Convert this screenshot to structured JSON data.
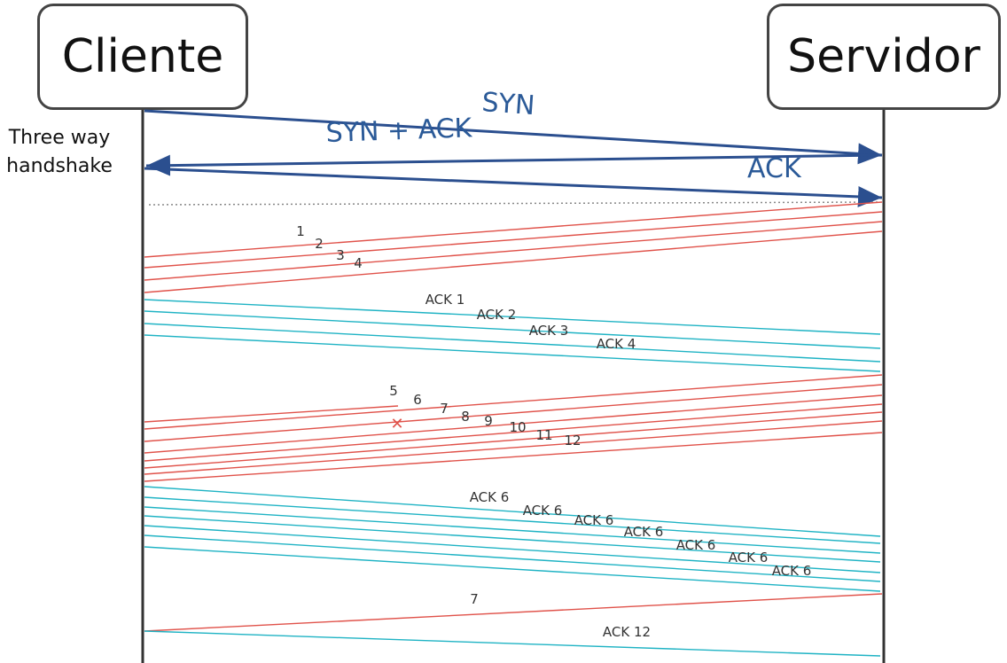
{
  "client_label": "Cliente",
  "server_label": "Servidor",
  "side_label": [
    "Three way",
    "handshake"
  ],
  "handshake": {
    "syn": "SYN",
    "syn_ack": "SYN + ACK",
    "ack": "ACK"
  },
  "colors": {
    "handshake": "#2b4f8f",
    "data": "#e0524a",
    "ack": "#1fb3c4",
    "lifeline": "#333333"
  },
  "lost_marker": "✕",
  "segments": [
    {
      "label": "1",
      "kind": "data"
    },
    {
      "label": "2",
      "kind": "data"
    },
    {
      "label": "3",
      "kind": "data"
    },
    {
      "label": "4",
      "kind": "data"
    },
    {
      "label": "ACK 1",
      "kind": "ack"
    },
    {
      "label": "ACK 2",
      "kind": "ack"
    },
    {
      "label": "ACK 3",
      "kind": "ack"
    },
    {
      "label": "ACK 4",
      "kind": "ack"
    },
    {
      "label": "5",
      "kind": "data",
      "lost": true
    },
    {
      "label": "6",
      "kind": "data"
    },
    {
      "label": "7",
      "kind": "data"
    },
    {
      "label": "8",
      "kind": "data"
    },
    {
      "label": "9",
      "kind": "data"
    },
    {
      "label": "10",
      "kind": "data"
    },
    {
      "label": "11",
      "kind": "data"
    },
    {
      "label": "12",
      "kind": "data"
    },
    {
      "label": "ACK 6",
      "kind": "ack"
    },
    {
      "label": "ACK 6",
      "kind": "ack"
    },
    {
      "label": "ACK 6",
      "kind": "ack"
    },
    {
      "label": "ACK 6",
      "kind": "ack"
    },
    {
      "label": "ACK 6",
      "kind": "ack"
    },
    {
      "label": "ACK 6",
      "kind": "ack"
    },
    {
      "label": "ACK 6",
      "kind": "ack"
    },
    {
      "label": "7",
      "kind": "data"
    },
    {
      "label": "ACK 12",
      "kind": "ack"
    }
  ]
}
